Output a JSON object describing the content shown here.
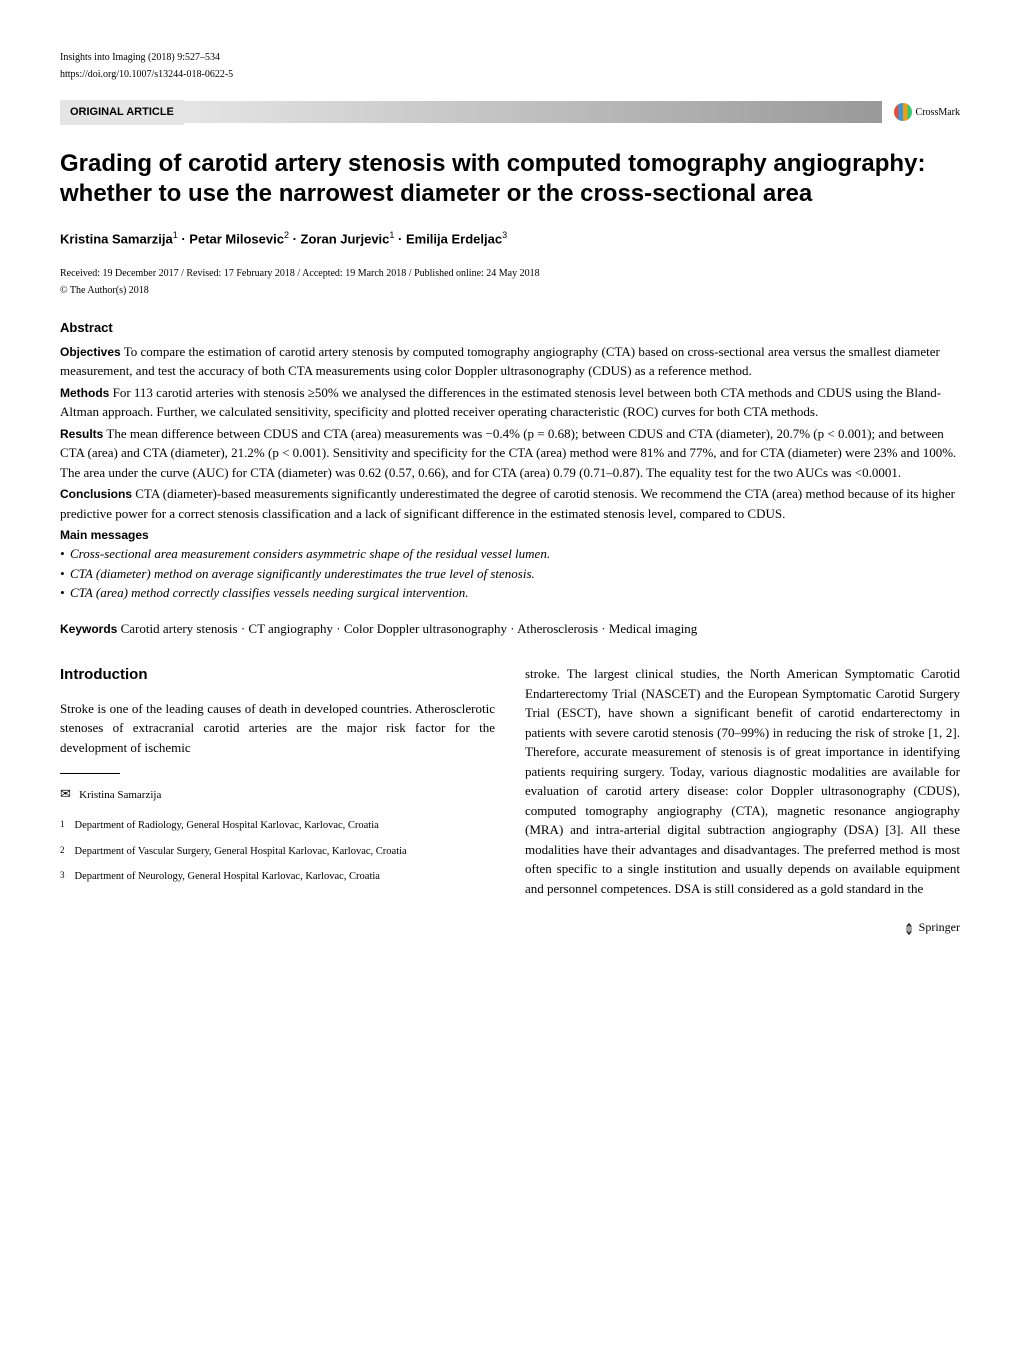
{
  "journal_meta": "Insights into Imaging (2018) 9:527–534",
  "doi": "https://doi.org/10.1007/s13244-018-0622-5",
  "article_type": "ORIGINAL ARTICLE",
  "crossmark_label": "CrossMark",
  "title": "Grading of carotid artery stenosis with computed tomography angiography: whether to use the narrowest diameter or the cross-sectional area",
  "authors_html": "Kristina Samarzija<sup>1</sup> · Petar Milosevic<sup>2</sup> · Zoran Jurjevic<sup>1</sup> · Emilija Erdeljac<sup>3</sup>",
  "dates": "Received: 19 December 2017 / Revised: 17 February 2018 / Accepted: 19 March 2018 / Published online: 24 May 2018",
  "copyright": "© The Author(s) 2018",
  "abstract_heading": "Abstract",
  "abstract": {
    "objectives_label": "Objectives",
    "objectives": " To compare the estimation of carotid artery stenosis by computed tomography angiography (CTA) based on cross-sectional area versus the smallest diameter measurement, and test the accuracy of both CTA measurements using color Doppler ultrasonography (CDUS) as a reference method.",
    "methods_label": "Methods",
    "methods": " For 113 carotid arteries with stenosis ≥50% we analysed the differences in the estimated stenosis level between both CTA methods and CDUS using the Bland-Altman approach. Further, we calculated sensitivity, specificity and plotted receiver operating characteristic (ROC) curves for both CTA methods.",
    "results_label": "Results",
    "results": " The mean difference between CDUS and CTA (area) measurements was −0.4% (p = 0.68); between CDUS and CTA (diameter), 20.7% (p < 0.001); and between CTA (area) and CTA (diameter), 21.2% (p < 0.001). Sensitivity and specificity for the CTA (area) method were 81% and 77%, and for CTA (diameter) were 23% and 100%. The area under the curve (AUC) for CTA (diameter) was 0.62 (0.57, 0.66), and for CTA (area) 0.79 (0.71–0.87). The equality test for the two AUCs was <0.0001.",
    "conclusions_label": "Conclusions",
    "conclusions": " CTA (diameter)-based measurements significantly underestimated the degree of carotid stenosis. We recommend the CTA (area) method because of its higher predictive power for a correct stenosis classification and a lack of significant difference in the estimated stenosis level, compared to CDUS."
  },
  "main_messages_heading": "Main messages",
  "bullets": [
    "Cross-sectional area measurement considers asymmetric shape of the residual vessel lumen.",
    "CTA (diameter) method on average significantly underestimates the true level of stenosis.",
    "CTA (area) method correctly classifies vessels needing surgical intervention."
  ],
  "keywords_label": "Keywords",
  "keywords": "  Carotid artery stenosis · CT angiography · Color Doppler ultrasonography · Atherosclerosis · Medical imaging",
  "intro_heading": "Introduction",
  "intro_col1": "Stroke is one of the leading causes of death in developed countries. Atherosclerotic stenoses of extracranial carotid arteries are the major risk factor for the development of ischemic",
  "intro_col2": "stroke. The largest clinical studies, the North American Symptomatic Carotid Endarterectomy Trial (NASCET) and the European Symptomatic Carotid Surgery Trial (ESCT), have shown a significant benefit of carotid endarterectomy in patients with severe carotid stenosis (70–99%) in reducing the risk of stroke [1, 2]. Therefore, accurate measurement of stenosis is of great importance in identifying patients requiring surgery. Today, various diagnostic modalities are available for evaluation of carotid artery disease: color Doppler ultrasonography (CDUS), computed tomography angiography (CTA), magnetic resonance angiography (MRA) and intra-arterial digital subtraction angiography (DSA) [3]. All these modalities have their advantages and disadvantages. The preferred method is most often specific to a single institution and usually depends on available equipment and personnel competences. DSA is still considered as a gold standard in the",
  "corresponding_name": "Kristina Samarzija",
  "affiliations": [
    {
      "num": "1",
      "text": "Department of Radiology, General Hospital Karlovac, Karlovac, Croatia"
    },
    {
      "num": "2",
      "text": "Department of Vascular Surgery, General Hospital Karlovac, Karlovac, Croatia"
    },
    {
      "num": "3",
      "text": "Department of Neurology, General Hospital Karlovac, Karlovac, Croatia"
    }
  ],
  "publisher": "Springer"
}
